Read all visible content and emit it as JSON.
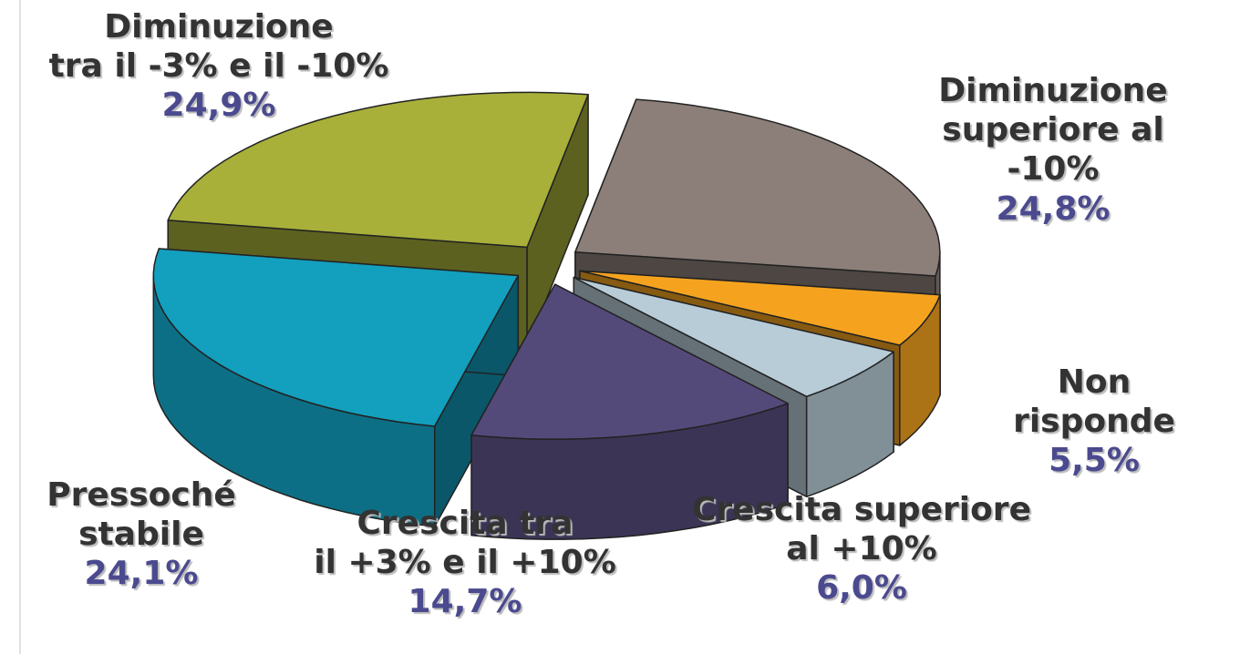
{
  "chart_data": {
    "type": "pie",
    "categories": [
      "Diminuzione\ntra il -3% e il -10%",
      "Diminuzione\nsuperiore al -10%",
      "Non risponde",
      "Crescita superiore\nal +10%",
      "Crescita tra\nil +3% e il +10%",
      "Pressoché\nstabile"
    ],
    "values": [
      24.9,
      24.8,
      5.5,
      6.0,
      14.7,
      24.1
    ],
    "value_labels": [
      "24,9%",
      "24,8%",
      "5,5%",
      "6,0%",
      "14,7%",
      "24,1%"
    ],
    "colors": [
      "#a8b03a",
      "#8c7f79",
      "#f5a31f",
      "#b8ccd8",
      "#544a7a",
      "#139fbe"
    ],
    "three_d": true,
    "exploded": true
  }
}
